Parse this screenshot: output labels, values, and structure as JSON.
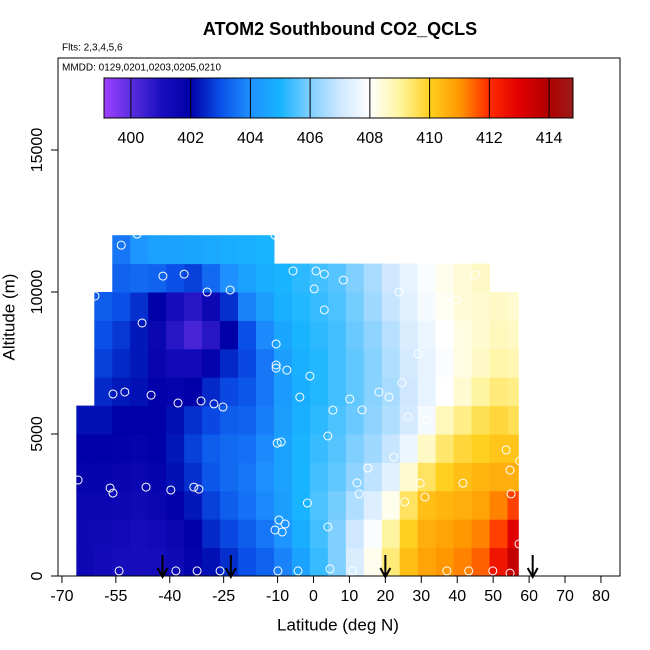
{
  "chart_data": {
    "type": "heatmap",
    "title": "ATOM2 Southbound CO2_QCLS",
    "annotations": [
      "Flts: 2,3,4,5,6",
      "MMDD: 0129,0201,0203,0205,0210"
    ],
    "x_label": "Latitude (deg N)",
    "y_label": "Altitude (m)",
    "xlim": [
      -71.1,
      85.3
    ],
    "xticks": [
      -70,
      -55,
      -40,
      -25,
      -10,
      0,
      10,
      20,
      30,
      40,
      50,
      60,
      70,
      80
    ],
    "ylim": [
      0,
      18240
    ],
    "yticks": [
      0,
      5000,
      10000,
      15000
    ],
    "x_edges": [
      -66,
      -61,
      -56,
      -51,
      -46,
      -41,
      -36,
      -31,
      -26,
      -21,
      -16,
      -11,
      -6,
      -1,
      4,
      9,
      14,
      19,
      24,
      29,
      34,
      39,
      44,
      49,
      54,
      57
    ],
    "y_edges": [
      0,
      1000,
      2000,
      3000,
      4000,
      5000,
      6000,
      7000,
      8000,
      9000,
      10000,
      11000,
      12000
    ],
    "z": [
      [
        401.5,
        401.5,
        401.6,
        401.8,
        402,
        402.2,
        null,
        null,
        null,
        null,
        null,
        null
      ],
      [
        401.3,
        401.4,
        401.6,
        401.8,
        402,
        402.2,
        402.5,
        402.8,
        403,
        403.2,
        null,
        null
      ],
      [
        401.2,
        401.3,
        401.5,
        401.7,
        401.9,
        402,
        402.3,
        402.5,
        402.7,
        403,
        403.3,
        403.6
      ],
      [
        401.1,
        401.2,
        401.4,
        401.6,
        401.8,
        402,
        402.2,
        402.3,
        402.3,
        402.6,
        403.4,
        404.2
      ],
      [
        401.2,
        401.3,
        401.6,
        401.8,
        402,
        402,
        401.9,
        401.7,
        401.6,
        402,
        403.3,
        404.5
      ],
      [
        401.4,
        401.6,
        401.9,
        402.2,
        402.3,
        402.2,
        401.8,
        401.3,
        400.8,
        401.2,
        403,
        404.5
      ],
      [
        401.8,
        402,
        402.3,
        402.6,
        402.8,
        402.6,
        402,
        401.3,
        400.3,
        400.8,
        402.8,
        404.6
      ],
      [
        402.2,
        402.5,
        402.8,
        403.1,
        403.2,
        402.9,
        402.5,
        401.8,
        400.8,
        401.5,
        403.4,
        404.7
      ],
      [
        402.6,
        402.9,
        403.2,
        403.4,
        403.4,
        403.2,
        402.9,
        402.5,
        402,
        402.6,
        404,
        404.8
      ],
      [
        403,
        403.2,
        403.5,
        403.6,
        403.5,
        403.3,
        403.1,
        402.9,
        403,
        403.8,
        404.5,
        404.9
      ],
      [
        403.3,
        403.6,
        403.9,
        404,
        403.9,
        403.7,
        403.6,
        403.6,
        403.9,
        404.4,
        404.8,
        405
      ],
      [
        403.8,
        404.1,
        404.4,
        404.5,
        404.5,
        404.4,
        404.3,
        404.4,
        404.6,
        404.9,
        405,
        null
      ],
      [
        404.5,
        404.8,
        405,
        405,
        405,
        404.9,
        404.8,
        404.9,
        405,
        405.1,
        405.2,
        null
      ],
      [
        405.3,
        405.4,
        405.5,
        405.4,
        405.3,
        405.2,
        405.1,
        405.1,
        405.2,
        405.3,
        405.4,
        null
      ],
      [
        406,
        406,
        405.9,
        405.7,
        405.6,
        405.5,
        405.4,
        405.4,
        405.4,
        405.5,
        405.6,
        null
      ],
      [
        407.2,
        407,
        406.6,
        406.2,
        406,
        405.8,
        405.7,
        405.7,
        405.8,
        405.9,
        406,
        null
      ],
      [
        408.2,
        407.9,
        407.3,
        406.8,
        406.4,
        406.2,
        406.1,
        406.1,
        406.2,
        406.4,
        406.5,
        null
      ],
      [
        409.3,
        409,
        408.2,
        407.4,
        406.9,
        406.6,
        406.5,
        406.6,
        406.7,
        406.9,
        407,
        null
      ],
      [
        410.3,
        410,
        409.5,
        408.5,
        407.6,
        407.1,
        407,
        407.1,
        407.2,
        407.4,
        407.5,
        null
      ],
      [
        410.8,
        410.6,
        410.3,
        409.5,
        408.6,
        407.8,
        407.5,
        407.5,
        407.6,
        407.8,
        407.9,
        null
      ],
      [
        411,
        410.8,
        410.5,
        410,
        409.4,
        408.7,
        408,
        407.9,
        408,
        408.1,
        408.2,
        null
      ],
      [
        411.2,
        411,
        410.6,
        410.3,
        409.8,
        409.2,
        408.5,
        408.3,
        408.3,
        408.4,
        408.4,
        null
      ],
      [
        411.5,
        411.2,
        410.8,
        410.5,
        410,
        409.6,
        409,
        408.6,
        408.5,
        408.5,
        408.6,
        null
      ],
      [
        412.5,
        411.8,
        411.2,
        410.6,
        410.2,
        409.8,
        409.3,
        408.9,
        408.7,
        408.6,
        null,
        null
      ],
      [
        413.6,
        413,
        411.8,
        410.6,
        410.2,
        409.6,
        409.2,
        408.8,
        408.6,
        408.5,
        null,
        null
      ]
    ],
    "colorbar": {
      "lim": [
        399.1,
        414.8
      ],
      "ticks": [
        400,
        402,
        404,
        406,
        408,
        410,
        412,
        414
      ],
      "colorscale": [
        {
          "value": 399.1,
          "color": "#a040ff"
        },
        {
          "value": 400,
          "color": "#5a2ee0"
        },
        {
          "value": 401,
          "color": "#1a0fc0"
        },
        {
          "value": 402,
          "color": "#0000a8"
        },
        {
          "value": 403,
          "color": "#0a50e8"
        },
        {
          "value": 404,
          "color": "#1e90ff"
        },
        {
          "value": 405,
          "color": "#18b4ff"
        },
        {
          "value": 406,
          "color": "#7fcfff"
        },
        {
          "value": 407,
          "color": "#cfe8ff"
        },
        {
          "value": 408,
          "color": "#ffffff"
        },
        {
          "value": 409,
          "color": "#fff5a0"
        },
        {
          "value": 410,
          "color": "#ffd020"
        },
        {
          "value": 411,
          "color": "#ff9800"
        },
        {
          "value": 412,
          "color": "#ff2a00"
        },
        {
          "value": 413,
          "color": "#e00000"
        },
        {
          "value": 414,
          "color": "#b00000"
        },
        {
          "value": 414.8,
          "color": "#9a1c1c"
        }
      ]
    },
    "points": {
      "color": "#ffffff",
      "x": [
        -46.3,
        -49.1,
        -53.5,
        -60.8,
        -41.9,
        -36.0,
        -29.6,
        -23.2,
        -47.7,
        -55.8,
        -52.5,
        -45.2,
        -37.7,
        -31.3,
        -27.7,
        -25.2,
        -56.6,
        -55.8,
        -46.6,
        -39.7,
        -33.3,
        -31.9,
        -54.1,
        -38.3,
        -32.4,
        -26.0,
        -10.7,
        -5.7,
        0.7,
        0.2,
        3.0,
        8.3,
        3.0,
        -10.4,
        -10.4,
        -10.4,
        -7.4,
        -1.0,
        -3.8,
        5.4,
        4.0,
        10.1,
        13.5,
        18.2,
        21.0,
        24.6,
        26.3,
        29.1,
        31.6,
        23.8,
        33.5,
        39.7,
        45.0,
        15.1,
        22.3,
        12.1,
        12.7,
        25.4,
        29.7,
        31.0,
        41.6,
        54.7,
        55.0,
        53.6,
        -10.1,
        -9.0,
        -9.6,
        -7.9,
        -10.7,
        -8.7,
        -1.7,
        4.0,
        -4.3,
        -9.9,
        4.6,
        10.9,
        15.7,
        37.1,
        43.2,
        49.9,
        54.7,
        57.2,
        57.4,
        -65.5
      ],
      "y": [
        12290,
        12040,
        11650,
        9860,
        10560,
        10630,
        10000,
        10070,
        8910,
        6410,
        6480,
        6370,
        6090,
        6160,
        6060,
        5950,
        3100,
        2920,
        3130,
        3030,
        3130,
        3060,
        180,
        180,
        180,
        180,
        12000,
        10740,
        10740,
        10110,
        10630,
        10420,
        9370,
        8170,
        7430,
        7320,
        7250,
        7040,
        6300,
        5840,
        4930,
        6230,
        5850,
        6480,
        6300,
        6800,
        5600,
        7820,
        5490,
        10000,
        10390,
        9720,
        10600,
        3800,
        4190,
        3280,
        2890,
        2610,
        3270,
        2780,
        3270,
        3730,
        2890,
        4440,
        4680,
        4720,
        1970,
        1830,
        1620,
        1550,
        2570,
        1730,
        180,
        180,
        250,
        180,
        180,
        180,
        180,
        180,
        100,
        1130,
        4050,
        3380
      ]
    },
    "arrows": {
      "color": "#000000",
      "x": [
        -42,
        -23,
        20,
        61
      ]
    }
  }
}
